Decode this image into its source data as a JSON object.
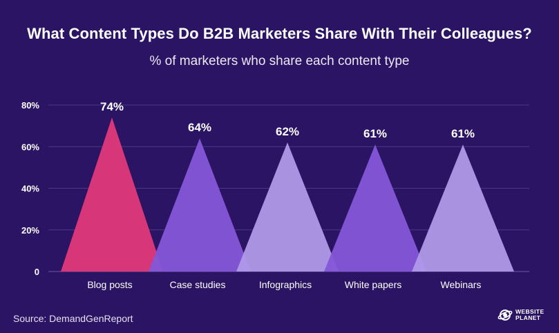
{
  "title": "What Content Types Do B2B Marketers Share With Their Colleagues?",
  "subtitle": "% of marketers who share each content type",
  "source": "Source: DemandGenReport",
  "logo": {
    "line1": "WEBSITE",
    "line2": "PLANET"
  },
  "colors": {
    "background": "#2a1463",
    "bars": [
      "#e0397a",
      "#8456d8",
      "#b09ae8",
      "#8456d8",
      "#b09ae8"
    ],
    "grid": "#4a3a86"
  },
  "chart_data": {
    "type": "bar",
    "bar_shape": "triangle",
    "categories": [
      "Blog posts",
      "Case studies",
      "Infographics",
      "White papers",
      "Webinars"
    ],
    "values": [
      74,
      64,
      62,
      61,
      61
    ],
    "value_labels": [
      "74%",
      "64%",
      "62%",
      "61%",
      "61%"
    ],
    "ylim": [
      0,
      80
    ],
    "y_ticks": [
      0,
      20,
      40,
      60,
      80
    ],
    "y_tick_labels": [
      "0",
      "20%",
      "40%",
      "60%",
      "80%"
    ],
    "grid": true,
    "legend": "none"
  }
}
